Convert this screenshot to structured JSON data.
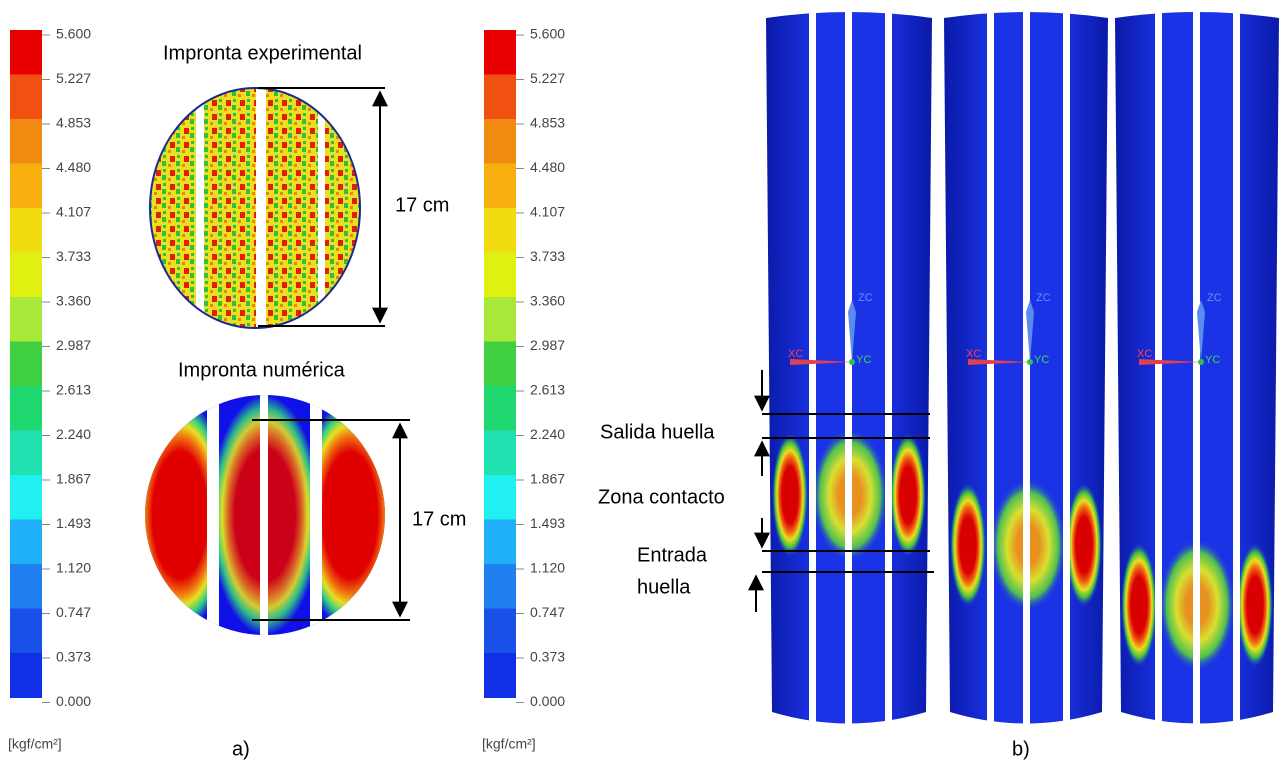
{
  "colorbars": [
    {
      "ticks": [
        "5.600",
        "5.227",
        "4.853",
        "4.480",
        "4.107",
        "3.733",
        "3.360",
        "2.987",
        "2.613",
        "2.240",
        "1.867",
        "1.493",
        "1.120",
        "0.747",
        "0.373",
        "0.000"
      ],
      "unit": "[kgf/cm²]"
    },
    {
      "ticks": [
        "5.600",
        "5.227",
        "4.853",
        "4.480",
        "4.107",
        "3.733",
        "3.360",
        "2.987",
        "2.613",
        "2.240",
        "1.867",
        "1.493",
        "1.120",
        "0.747",
        "0.373",
        "0.000"
      ],
      "unit": "[kgf/cm²]"
    }
  ],
  "panel_a": {
    "label": "a)",
    "experimental": {
      "title": "Impronta experimental",
      "dimension": "17 cm"
    },
    "numerical": {
      "title": "Impronta numérica",
      "dimension": "17 cm"
    }
  },
  "panel_b": {
    "label": "b)",
    "annotations": {
      "exit": "Salida huella",
      "contact": "Zona contacto",
      "entry": [
        "Entrada",
        "huella"
      ]
    },
    "axes": [
      {
        "x": "XC",
        "y": "YC",
        "z": "ZC"
      },
      {
        "x": "XC",
        "y": "YC",
        "z": "ZC"
      },
      {
        "x": "XC",
        "y": "YC",
        "z": "ZC"
      }
    ]
  }
}
